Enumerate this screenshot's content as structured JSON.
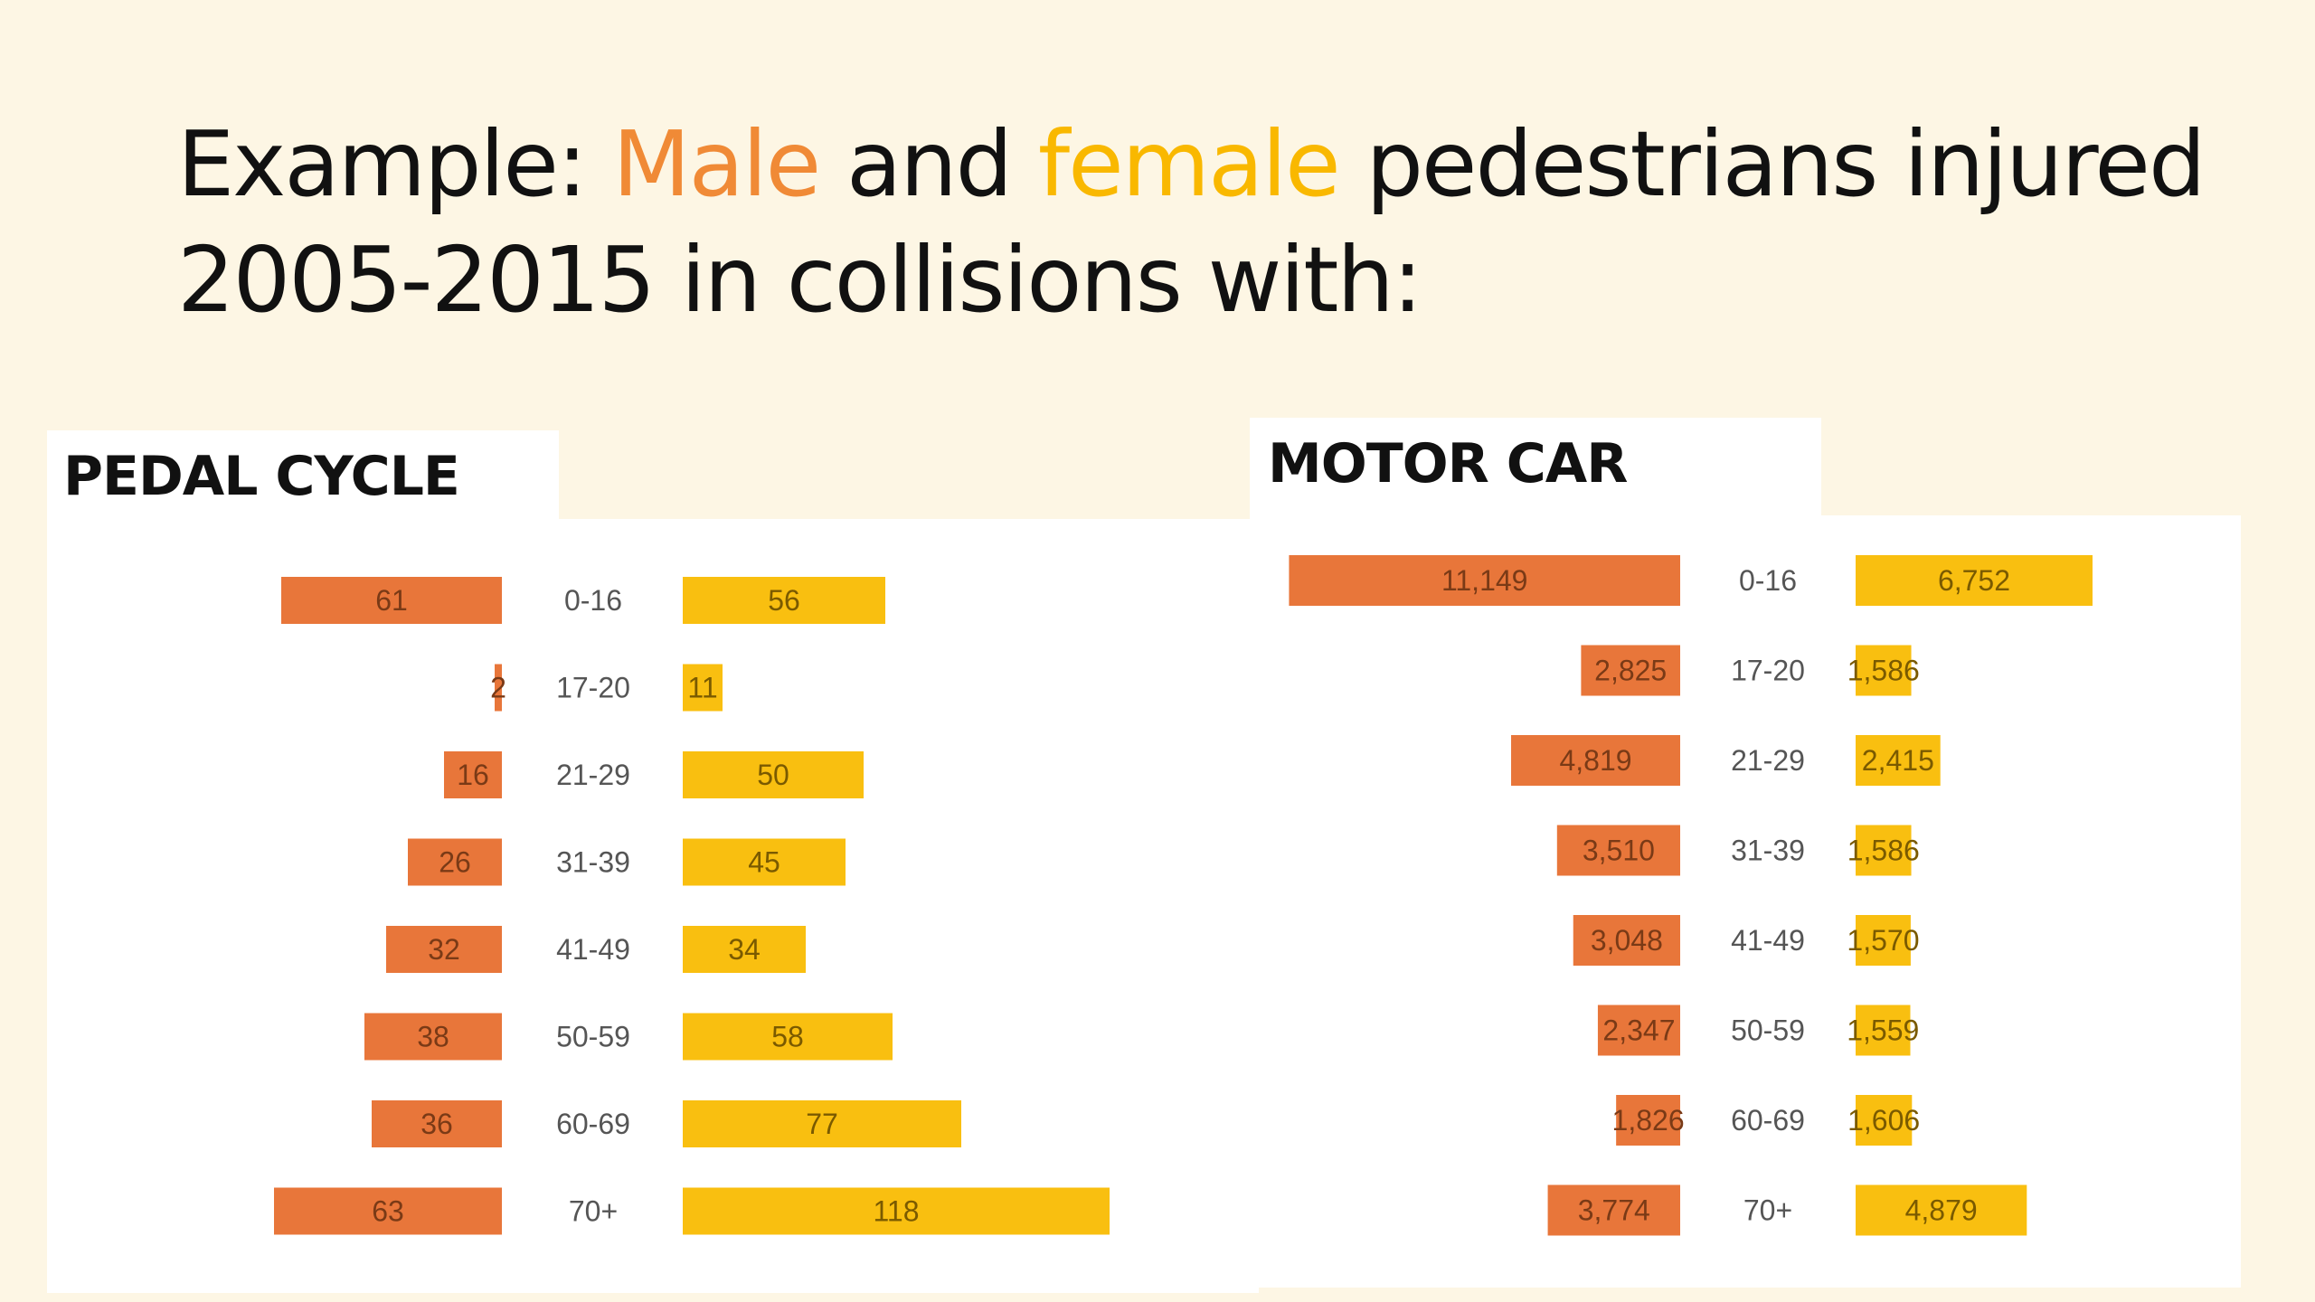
{
  "slide": {
    "title_prefix": "Example: ",
    "title_male": "Male",
    "title_and": " and ",
    "title_female": "female",
    "title_line1_rest": " pedestrians injured",
    "title_line2": "2005-2015 in collisions with:"
  },
  "colors": {
    "background": "#fdf6e4",
    "male": "#e8763a",
    "female": "#f9bf10",
    "male_title": "#f08a36",
    "female_title": "#f9b800"
  },
  "chart_data": [
    {
      "type": "bar",
      "title": "PEDAL CYCLE",
      "categories": [
        "0-16",
        "17-20",
        "21-29",
        "31-39",
        "41-49",
        "50-59",
        "60-69",
        "70+"
      ],
      "series": [
        {
          "values": [
            61,
            2,
            16,
            26,
            32,
            38,
            36,
            63
          ]
        },
        {
          "values": [
            56,
            11,
            50,
            45,
            34,
            58,
            77,
            118
          ]
        }
      ],
      "value_labels": [
        [
          "61",
          "2",
          "16",
          "26",
          "32",
          "38",
          "36",
          "63"
        ],
        [
          "56",
          "11",
          "50",
          "45",
          "34",
          "58",
          "77",
          "118"
        ]
      ]
    },
    {
      "type": "bar",
      "title": "MOTOR CAR",
      "categories": [
        "0-16",
        "17-20",
        "21-29",
        "31-39",
        "41-49",
        "50-59",
        "60-69",
        "70+"
      ],
      "series": [
        {
          "values": [
            11149,
            2825,
            4819,
            3510,
            3048,
            2347,
            1826,
            3774
          ]
        },
        {
          "values": [
            6752,
            1586,
            2415,
            1586,
            1570,
            1559,
            1606,
            4879
          ]
        }
      ],
      "value_labels": [
        [
          "11,149",
          "2,825",
          "4,819",
          "3,510",
          "3,048",
          "2,347",
          "1,826",
          "3,774"
        ],
        [
          "6,752",
          "1,586",
          "2,415",
          "1,586",
          "1,570",
          "1,559",
          "1,606",
          "4,879"
        ]
      ]
    }
  ]
}
